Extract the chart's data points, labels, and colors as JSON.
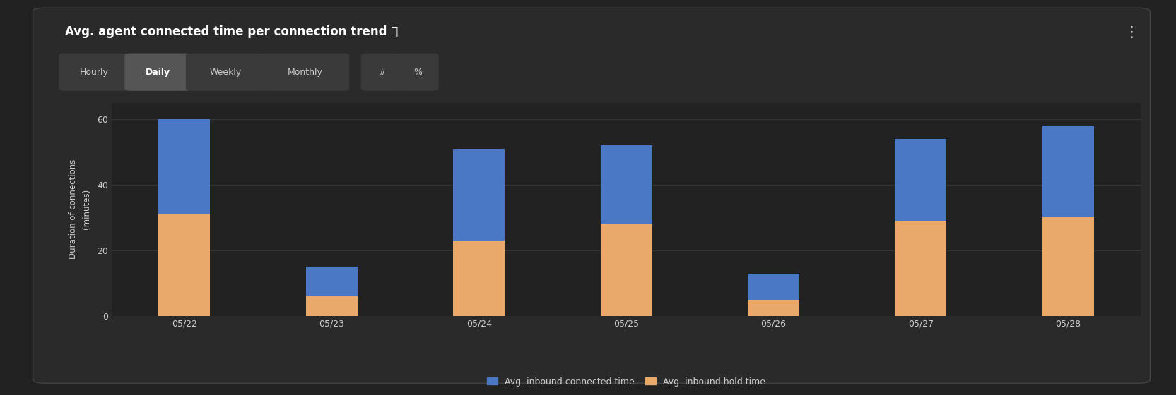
{
  "title": "Avg. agent connected time per connection trend ⓘ",
  "ylabel_line1": "Duration of connections",
  "ylabel_line2": "(minutes)",
  "categories": [
    "05/22",
    "05/23",
    "05/24",
    "05/25",
    "05/26",
    "05/27",
    "05/28"
  ],
  "hold_values": [
    31,
    6,
    23,
    28,
    5,
    29,
    30
  ],
  "connected_values": [
    29,
    9,
    28,
    24,
    8,
    25,
    28
  ],
  "hold_color": "#E8A96A",
  "connected_color": "#4A78C4",
  "background_color": "#222222",
  "card_color": "#2A2A2A",
  "plot_bg_color": "#222222",
  "text_color": "#CCCCCC",
  "grid_color": "#3A3A3A",
  "ylim": [
    0,
    65
  ],
  "yticks": [
    0,
    20,
    40,
    60
  ],
  "legend_connected": "Avg. inbound connected time",
  "legend_hold": "Avg. inbound hold time",
  "tab_labels": [
    "Hourly",
    "Daily",
    "Weekly",
    "Monthly",
    "#",
    "%"
  ],
  "tab_active": "Daily",
  "bar_width": 0.35,
  "title_fontsize": 12,
  "axis_label_fontsize": 8.5,
  "tick_fontsize": 9,
  "legend_fontsize": 9
}
